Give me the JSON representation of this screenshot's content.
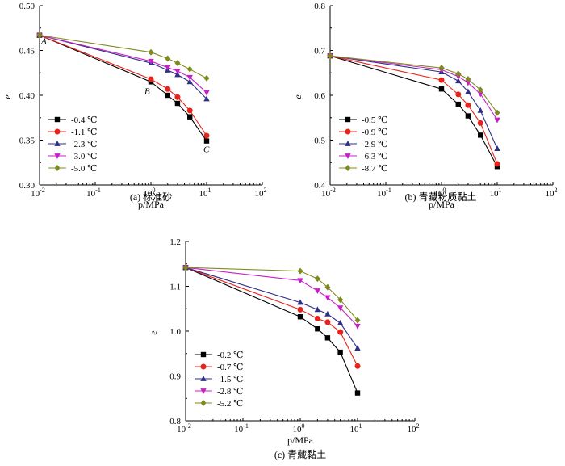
{
  "chart_data": [
    {
      "type": "line",
      "caption": "(a) 标准砂",
      "xlabel": "p/MPa",
      "ylabel": "e",
      "xscale": "log",
      "xlim": [
        0.01,
        100
      ],
      "ylim": [
        0.3,
        0.5
      ],
      "yticks": [
        "0.30",
        "0.35",
        "0.40",
        "0.45",
        "0.50"
      ],
      "xticks": [
        {
          "base": "10",
          "exp": "-2"
        },
        {
          "base": "10",
          "exp": "-1"
        },
        {
          "base": "10",
          "exp": "0"
        },
        {
          "base": "10",
          "exp": "1"
        },
        {
          "base": "10",
          "exp": "2"
        }
      ],
      "legend_position": "lower-left",
      "annotations": [
        {
          "text": "A",
          "x": 0.01,
          "y": 0.467
        },
        {
          "text": "B",
          "x": 1,
          "y": 0.415
        },
        {
          "text": "C",
          "x": 10,
          "y": 0.349
        }
      ],
      "x": [
        0.01,
        1,
        2,
        3,
        5,
        10
      ],
      "series": [
        {
          "name": "-0.4 ℃",
          "color": "#000000",
          "marker": "square",
          "values": [
            0.467,
            0.415,
            0.4,
            0.391,
            0.376,
            0.349
          ]
        },
        {
          "name": "-1.1 ℃",
          "color": "#e8231c",
          "marker": "circle",
          "values": [
            0.467,
            0.418,
            0.407,
            0.398,
            0.383,
            0.355
          ]
        },
        {
          "name": "-2.3 ℃",
          "color": "#2f2e86",
          "marker": "triangle-up",
          "values": [
            0.467,
            0.436,
            0.428,
            0.423,
            0.415,
            0.396
          ]
        },
        {
          "name": "-3.0 ℃",
          "color": "#c81ec8",
          "marker": "triangle-down",
          "values": [
            0.467,
            0.438,
            0.431,
            0.427,
            0.42,
            0.403
          ]
        },
        {
          "name": "-5.0 ℃",
          "color": "#7f8a1e",
          "marker": "diamond",
          "values": [
            0.467,
            0.448,
            0.441,
            0.436,
            0.429,
            0.419
          ]
        }
      ]
    },
    {
      "type": "line",
      "caption": "(b) 青藏粉质黏土",
      "xlabel": "p/MPa",
      "ylabel": "e",
      "xscale": "log",
      "xlim": [
        0.01,
        100
      ],
      "ylim": [
        0.4,
        0.8
      ],
      "yticks": [
        "0.4",
        "0.5",
        "0.6",
        "0.7",
        "0.8"
      ],
      "xticks": [
        {
          "base": "10",
          "exp": "-2"
        },
        {
          "base": "10",
          "exp": "-1"
        },
        {
          "base": "10",
          "exp": "0"
        },
        {
          "base": "10",
          "exp": "1"
        },
        {
          "base": "10",
          "exp": "2"
        }
      ],
      "legend_position": "lower-left",
      "x": [
        0.01,
        1,
        2,
        3,
        5,
        10
      ],
      "series": [
        {
          "name": "-0.5 ℃",
          "color": "#000000",
          "marker": "square",
          "values": [
            0.688,
            0.614,
            0.58,
            0.554,
            0.511,
            0.441
          ]
        },
        {
          "name": "-0.9 ℃",
          "color": "#e8231c",
          "marker": "circle",
          "values": [
            0.688,
            0.634,
            0.602,
            0.578,
            0.538,
            0.447
          ]
        },
        {
          "name": "-2.9 ℃",
          "color": "#2f2e86",
          "marker": "triangle-up",
          "values": [
            0.688,
            0.652,
            0.632,
            0.608,
            0.566,
            0.481
          ]
        },
        {
          "name": "-6.3 ℃",
          "color": "#c81ec8",
          "marker": "triangle-down",
          "values": [
            0.688,
            0.657,
            0.642,
            0.628,
            0.603,
            0.545
          ]
        },
        {
          "name": "-8.7 ℃",
          "color": "#7f8a1e",
          "marker": "diamond",
          "values": [
            0.688,
            0.661,
            0.648,
            0.636,
            0.612,
            0.561
          ]
        }
      ]
    },
    {
      "type": "line",
      "caption": "(c) 青藏黏土",
      "xlabel": "p/MPa",
      "ylabel": "e",
      "xscale": "log",
      "xlim": [
        0.01,
        100
      ],
      "ylim": [
        0.8,
        1.2
      ],
      "yticks": [
        "0.8",
        "0.9",
        "1.0",
        "1.1",
        "1.2"
      ],
      "xticks": [
        {
          "base": "10",
          "exp": "-2"
        },
        {
          "base": "10",
          "exp": "-1"
        },
        {
          "base": "10",
          "exp": "0"
        },
        {
          "base": "10",
          "exp": "1"
        },
        {
          "base": "10",
          "exp": "2"
        }
      ],
      "legend_position": "lower-left",
      "x": [
        0.01,
        1,
        2,
        3,
        5,
        10
      ],
      "series": [
        {
          "name": "-0.2 ℃",
          "color": "#000000",
          "marker": "square",
          "values": [
            1.142,
            1.032,
            1.005,
            0.985,
            0.953,
            0.862
          ]
        },
        {
          "name": "-0.7 ℃",
          "color": "#e8231c",
          "marker": "circle",
          "values": [
            1.142,
            1.048,
            1.028,
            1.02,
            0.998,
            0.922
          ]
        },
        {
          "name": "-1.5 ℃",
          "color": "#2f2e86",
          "marker": "triangle-up",
          "values": [
            1.142,
            1.064,
            1.048,
            1.038,
            1.018,
            0.962
          ]
        },
        {
          "name": "-2.8 ℃",
          "color": "#c81ec8",
          "marker": "triangle-down",
          "values": [
            1.142,
            1.113,
            1.09,
            1.075,
            1.052,
            1.011
          ]
        },
        {
          "name": "-5.2 ℃",
          "color": "#7f8a1e",
          "marker": "diamond",
          "values": [
            1.142,
            1.134,
            1.117,
            1.098,
            1.07,
            1.024
          ]
        }
      ]
    }
  ]
}
